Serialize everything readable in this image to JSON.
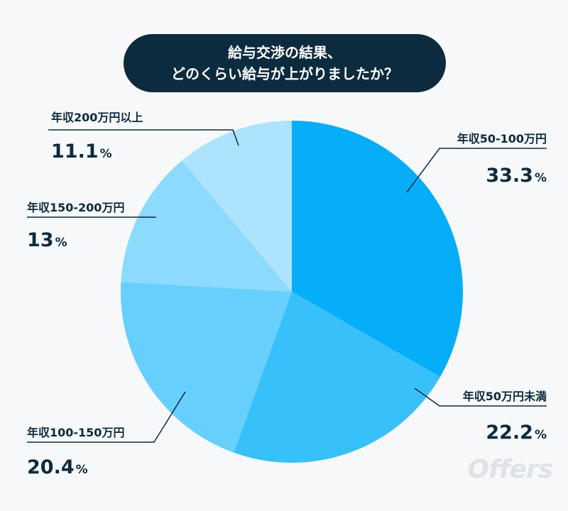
{
  "title": {
    "line1": "給与交渉の結果、",
    "line2": "どのくらい給与が上がりましたか？"
  },
  "watermark": "Offers",
  "chart_data": {
    "type": "pie",
    "title": "給与交渉の結果、どのくらい給与が上がりましたか？",
    "unit": "%",
    "start": "12 o'clock, clockwise",
    "slices": [
      {
        "label": "年収50-100万円",
        "value": 33.3,
        "display": "33.3",
        "color": "#06aefa"
      },
      {
        "label": "年収50万円未満",
        "value": 22.2,
        "display": "22.2",
        "color": "#38c0fb"
      },
      {
        "label": "年収100-150万円",
        "value": 20.4,
        "display": "20.4",
        "color": "#66cffc"
      },
      {
        "label": "年収150-200万円",
        "value": 13.0,
        "display": "13",
        "color": "#8cdafd"
      },
      {
        "label": "年収200万円以上",
        "value": 11.1,
        "display": "11.1",
        "color": "#aee3fd"
      }
    ]
  }
}
